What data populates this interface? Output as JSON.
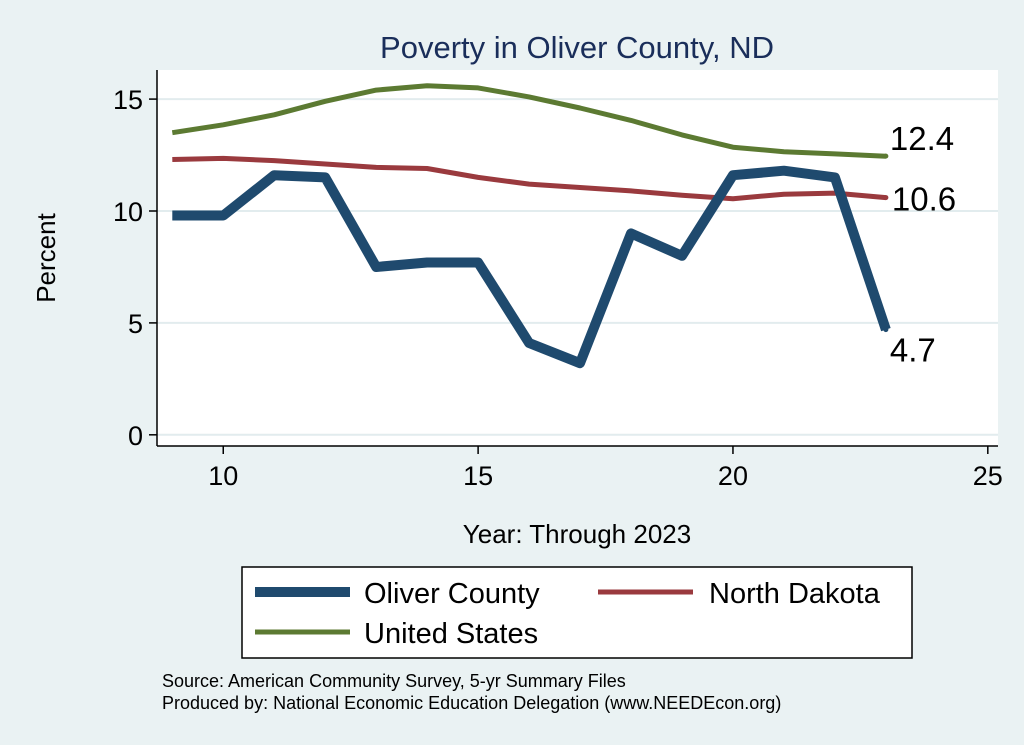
{
  "chart_data": {
    "type": "line",
    "title": "Poverty in Oliver County, ND",
    "xlabel": "Year: Through 2023",
    "ylabel": "Percent",
    "xlim": [
      8.7,
      25.2
    ],
    "ylim": [
      -0.5,
      16.3
    ],
    "xticks": [
      10,
      15,
      20,
      25
    ],
    "yticks": [
      0,
      5,
      10,
      15
    ],
    "grid": true,
    "legend_position": "bottom",
    "series": [
      {
        "name": "Oliver County",
        "color": "#1f4a6e",
        "width": "thick",
        "end_label": "4.7",
        "x": [
          9,
          10,
          11,
          12,
          13,
          14,
          15,
          16,
          17,
          18,
          19,
          20,
          21,
          22,
          23
        ],
        "y": [
          9.8,
          9.8,
          11.6,
          11.5,
          7.5,
          7.7,
          7.7,
          4.1,
          3.2,
          9.0,
          8.0,
          11.6,
          11.8,
          11.5,
          4.7
        ]
      },
      {
        "name": "North Dakota",
        "color": "#9a3a3e",
        "width": "medium",
        "end_label": "10.6",
        "x": [
          9,
          10,
          11,
          12,
          13,
          14,
          15,
          16,
          17,
          18,
          19,
          20,
          21,
          22,
          23
        ],
        "y": [
          12.3,
          12.35,
          12.25,
          12.1,
          11.95,
          11.9,
          11.5,
          11.2,
          11.05,
          10.9,
          10.7,
          10.55,
          10.75,
          10.8,
          10.6
        ]
      },
      {
        "name": "United States",
        "color": "#5c7a32",
        "width": "medium",
        "end_label": "12.4",
        "x": [
          9,
          10,
          11,
          12,
          13,
          14,
          15,
          16,
          17,
          18,
          19,
          20,
          21,
          22,
          23
        ],
        "y": [
          13.5,
          13.85,
          14.3,
          14.9,
          15.4,
          15.6,
          15.5,
          15.1,
          14.6,
          14.05,
          13.4,
          12.85,
          12.65,
          12.55,
          12.45
        ]
      }
    ],
    "notes": [
      "Source: American Community Survey, 5-yr Summary Files",
      "Produced by: National Economic Education Delegation (www.NEEDEcon.org)"
    ]
  }
}
